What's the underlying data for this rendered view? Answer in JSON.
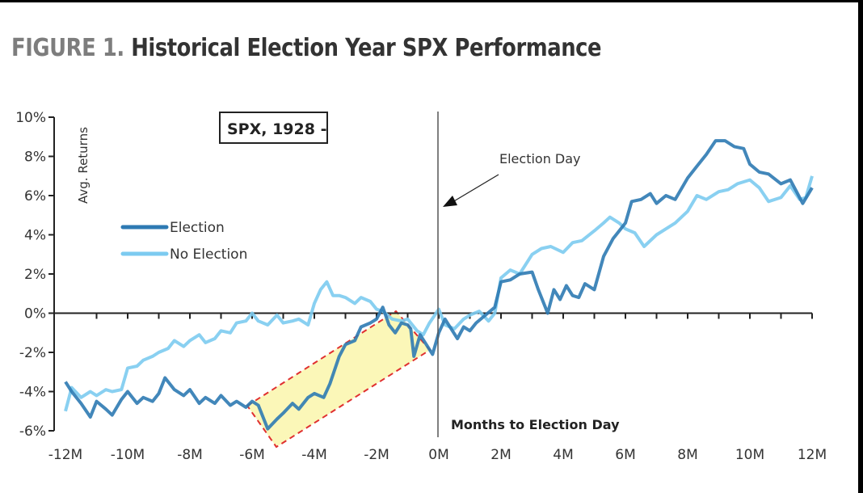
{
  "title": {
    "prefix": "FIGURE 1.",
    "text": "Historical Election Year SPX Performance"
  },
  "chart_data": {
    "type": "line",
    "xlabel": "Months to Election Day",
    "ylabel": "Avg. Returns",
    "xlim": [
      -12,
      12
    ],
    "ylim": [
      -6,
      10
    ],
    "x_ticks": [
      "-12M",
      "-10M",
      "-8M",
      "-6M",
      "-4M",
      "-2M",
      "0M",
      "2M",
      "4M",
      "6M",
      "8M",
      "10M",
      "12M"
    ],
    "x_tick_values": [
      -12,
      -10,
      -8,
      -6,
      -4,
      -2,
      0,
      2,
      4,
      6,
      8,
      10,
      12
    ],
    "y_ticks": [
      "10%",
      "8%",
      "6%",
      "4%",
      "2%",
      "0%",
      "-2%",
      "-4%",
      "-6%"
    ],
    "y_tick_values": [
      10,
      8,
      6,
      4,
      2,
      0,
      -2,
      -4,
      -6
    ],
    "grid": false,
    "legend": "left",
    "annotation_box": "SPX, 1928 -",
    "annotation_arrow": "Election Day",
    "highlight_range": [
      -6,
      0
    ],
    "highlight_color": "#fbf7b8",
    "highlight_border": "#e03030",
    "series": [
      {
        "name": "Election",
        "color": "#2e7ab3",
        "x": [
          -12,
          -11.8,
          -11.5,
          -11.2,
          -11,
          -10.7,
          -10.5,
          -10.2,
          -10,
          -9.7,
          -9.5,
          -9.2,
          -9,
          -8.8,
          -8.5,
          -8.2,
          -8,
          -7.7,
          -7.5,
          -7.2,
          -7,
          -6.7,
          -6.5,
          -6.2,
          -6,
          -5.8,
          -5.5,
          -5.2,
          -5,
          -4.7,
          -4.5,
          -4.2,
          -4,
          -3.7,
          -3.5,
          -3.2,
          -3,
          -2.7,
          -2.5,
          -2.2,
          -2,
          -1.8,
          -1.6,
          -1.4,
          -1.2,
          -1,
          -0.9,
          -0.8,
          -0.6,
          -0.4,
          -0.2,
          0,
          0.2,
          0.4,
          0.6,
          0.8,
          1,
          1.2,
          1.5,
          1.8,
          2,
          2.3,
          2.6,
          3,
          3.2,
          3.5,
          3.7,
          3.9,
          4.1,
          4.3,
          4.5,
          4.7,
          5,
          5.3,
          5.6,
          6,
          6.2,
          6.5,
          6.8,
          7,
          7.3,
          7.6,
          8,
          8.3,
          8.6,
          8.9,
          9.2,
          9.5,
          9.8,
          10,
          10.3,
          10.6,
          11,
          11.3,
          11.5,
          11.7,
          12
        ],
        "y": [
          -3.5,
          -4.0,
          -4.6,
          -5.3,
          -4.5,
          -4.9,
          -5.2,
          -4.4,
          -4.0,
          -4.6,
          -4.3,
          -4.5,
          -4.1,
          -3.3,
          -3.9,
          -4.2,
          -3.9,
          -4.6,
          -4.3,
          -4.6,
          -4.2,
          -4.7,
          -4.5,
          -4.8,
          -4.5,
          -4.7,
          -5.9,
          -5.4,
          -5.1,
          -4.6,
          -4.9,
          -4.3,
          -4.1,
          -4.3,
          -3.6,
          -2.2,
          -1.6,
          -1.4,
          -0.7,
          -0.5,
          -0.3,
          0.3,
          -0.6,
          -1.0,
          -0.5,
          -0.6,
          -0.8,
          -2.2,
          -1.1,
          -1.6,
          -2.1,
          -1.0,
          -0.3,
          -0.8,
          -1.3,
          -0.7,
          -0.9,
          -0.5,
          -0.1,
          0.3,
          1.6,
          1.7,
          2.0,
          2.1,
          1.2,
          0,
          1.2,
          0.7,
          1.4,
          0.9,
          0.8,
          1.5,
          1.2,
          2.9,
          3.8,
          4.6,
          5.7,
          5.8,
          6.1,
          5.6,
          6.0,
          5.8,
          6.9,
          7.5,
          8.1,
          8.8,
          8.8,
          8.5,
          8.4,
          7.6,
          7.2,
          7.1,
          6.6,
          6.8,
          6.2,
          5.6,
          6.4
        ]
      },
      {
        "name": "No Election",
        "color": "#7ccbf0",
        "x": [
          -12,
          -11.8,
          -11.5,
          -11.2,
          -11,
          -10.7,
          -10.5,
          -10.2,
          -10,
          -9.7,
          -9.5,
          -9.2,
          -9,
          -8.7,
          -8.5,
          -8.2,
          -8,
          -7.7,
          -7.5,
          -7.2,
          -7,
          -6.7,
          -6.5,
          -6.2,
          -6,
          -5.8,
          -5.5,
          -5.2,
          -5,
          -4.7,
          -4.5,
          -4.2,
          -4,
          -3.8,
          -3.6,
          -3.4,
          -3.2,
          -3,
          -2.7,
          -2.5,
          -2.2,
          -2,
          -1.8,
          -1.5,
          -1.2,
          -1,
          -0.7,
          -0.5,
          -0.3,
          0,
          0.2,
          0.5,
          0.8,
          1,
          1.3,
          1.6,
          1.8,
          2,
          2.3,
          2.6,
          3,
          3.3,
          3.6,
          4,
          4.3,
          4.6,
          5,
          5.3,
          5.5,
          5.8,
          6,
          6.3,
          6.6,
          7,
          7.3,
          7.6,
          8,
          8.3,
          8.6,
          9,
          9.3,
          9.6,
          10,
          10.3,
          10.6,
          11,
          11.3,
          11.6,
          11.8,
          12
        ],
        "y": [
          -5.0,
          -3.8,
          -4.3,
          -4.0,
          -4.2,
          -3.9,
          -4.0,
          -3.9,
          -2.8,
          -2.7,
          -2.4,
          -2.2,
          -2.0,
          -1.8,
          -1.4,
          -1.7,
          -1.4,
          -1.1,
          -1.5,
          -1.3,
          -0.9,
          -1.0,
          -0.5,
          -0.4,
          0,
          -0.4,
          -0.6,
          -0.1,
          -0.5,
          -0.4,
          -0.3,
          -0.6,
          0.5,
          1.2,
          1.6,
          0.9,
          0.9,
          0.8,
          0.5,
          0.8,
          0.6,
          0.2,
          0.1,
          -0.3,
          -0.4,
          -0.3,
          -0.9,
          -1.1,
          -0.5,
          0.2,
          -0.6,
          -0.8,
          -0.3,
          -0.1,
          0.1,
          -0.4,
          0,
          1.8,
          2.2,
          2.0,
          3.0,
          3.3,
          3.4,
          3.1,
          3.6,
          3.7,
          4.2,
          4.6,
          4.9,
          4.6,
          4.3,
          4.1,
          3.4,
          4.0,
          4.3,
          4.6,
          5.2,
          6.0,
          5.8,
          6.2,
          6.3,
          6.6,
          6.8,
          6.4,
          5.7,
          5.9,
          6.5,
          5.8,
          5.9,
          7.0
        ]
      }
    ]
  }
}
